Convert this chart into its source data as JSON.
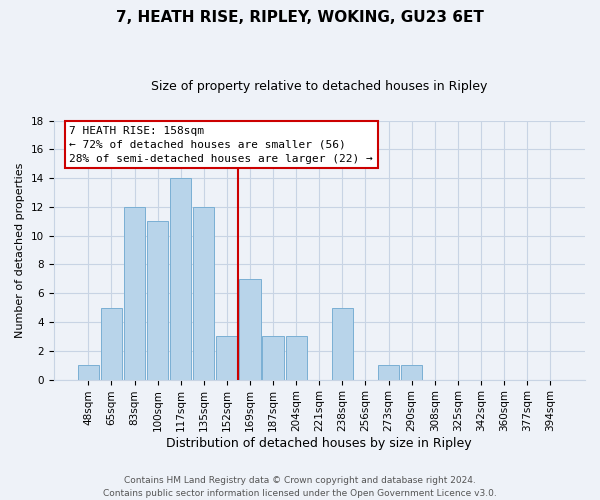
{
  "title": "7, HEATH RISE, RIPLEY, WOKING, GU23 6ET",
  "subtitle": "Size of property relative to detached houses in Ripley",
  "xlabel": "Distribution of detached houses by size in Ripley",
  "ylabel": "Number of detached properties",
  "bar_labels": [
    "48sqm",
    "65sqm",
    "83sqm",
    "100sqm",
    "117sqm",
    "135sqm",
    "152sqm",
    "169sqm",
    "187sqm",
    "204sqm",
    "221sqm",
    "238sqm",
    "256sqm",
    "273sqm",
    "290sqm",
    "308sqm",
    "325sqm",
    "342sqm",
    "360sqm",
    "377sqm",
    "394sqm"
  ],
  "bar_values": [
    1,
    5,
    12,
    11,
    14,
    12,
    3,
    7,
    3,
    3,
    0,
    5,
    0,
    1,
    1,
    0,
    0,
    0,
    0,
    0,
    0
  ],
  "bar_color": "#b8d4ea",
  "bar_edge_color": "#7aafd4",
  "vline_x_index": 6.5,
  "vline_color": "#cc0000",
  "ylim": [
    0,
    18
  ],
  "yticks": [
    0,
    2,
    4,
    6,
    8,
    10,
    12,
    14,
    16,
    18
  ],
  "annotation_title": "7 HEATH RISE: 158sqm",
  "annotation_line1": "← 72% of detached houses are smaller (56)",
  "annotation_line2": "28% of semi-detached houses are larger (22) →",
  "annotation_box_color": "white",
  "annotation_box_edge_color": "#cc0000",
  "footer_line1": "Contains HM Land Registry data © Crown copyright and database right 2024.",
  "footer_line2": "Contains public sector information licensed under the Open Government Licence v3.0.",
  "grid_color": "#c8d4e4",
  "background_color": "#eef2f8",
  "title_fontsize": 11,
  "subtitle_fontsize": 9,
  "xlabel_fontsize": 9,
  "ylabel_fontsize": 8,
  "tick_fontsize": 7.5,
  "footer_fontsize": 6.5
}
